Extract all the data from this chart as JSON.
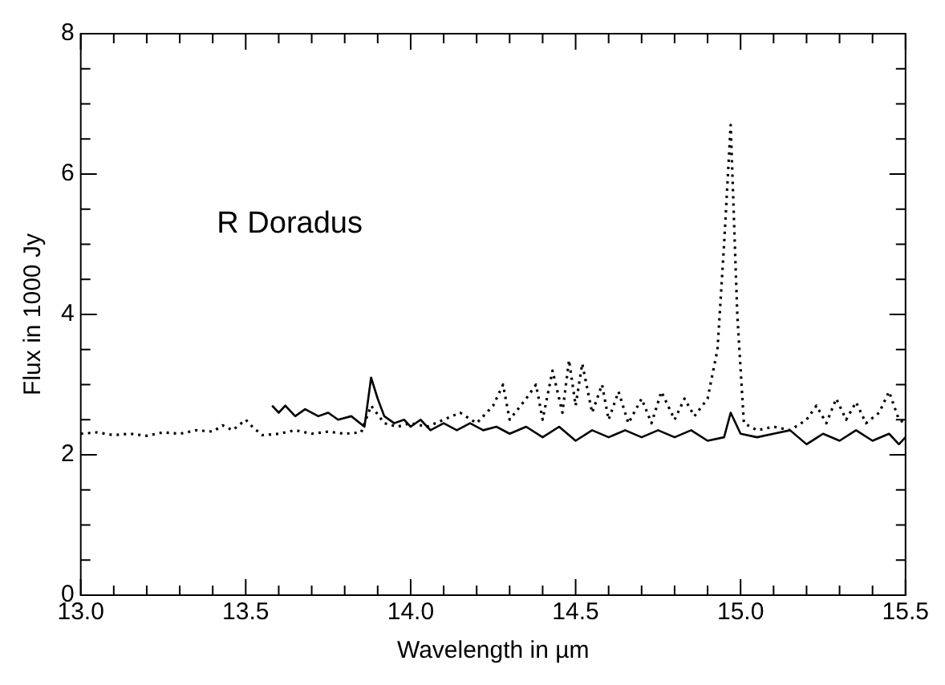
{
  "chart_data": {
    "type": "line",
    "xlabel": "Wavelength in µm",
    "ylabel": "Flux in 1000 Jy",
    "annotations": [
      "R Doradus"
    ],
    "xlim": [
      13.0,
      15.5
    ],
    "ylim": [
      0,
      8
    ],
    "xticks": [
      {
        "value": 13.0,
        "label": "13.0"
      },
      {
        "value": 13.1,
        "label": null
      },
      {
        "value": 13.2,
        "label": null
      },
      {
        "value": 13.3,
        "label": null
      },
      {
        "value": 13.4,
        "label": null
      },
      {
        "value": 13.5,
        "label": "13.5"
      },
      {
        "value": 13.6,
        "label": null
      },
      {
        "value": 13.7,
        "label": null
      },
      {
        "value": 13.8,
        "label": null
      },
      {
        "value": 13.9,
        "label": null
      },
      {
        "value": 14.0,
        "label": "14.0"
      },
      {
        "value": 14.1,
        "label": null
      },
      {
        "value": 14.2,
        "label": null
      },
      {
        "value": 14.3,
        "label": null
      },
      {
        "value": 14.4,
        "label": null
      },
      {
        "value": 14.5,
        "label": "14.5"
      },
      {
        "value": 14.6,
        "label": null
      },
      {
        "value": 14.7,
        "label": null
      },
      {
        "value": 14.8,
        "label": null
      },
      {
        "value": 14.9,
        "label": null
      },
      {
        "value": 15.0,
        "label": "15.0"
      },
      {
        "value": 15.1,
        "label": null
      },
      {
        "value": 15.2,
        "label": null
      },
      {
        "value": 15.3,
        "label": null
      },
      {
        "value": 15.4,
        "label": null
      },
      {
        "value": 15.5,
        "label": "15.5"
      }
    ],
    "yticks": [
      0,
      {
        "value": 0.5,
        "label": null
      },
      {
        "value": 1,
        "label": null
      },
      {
        "value": 1.5,
        "label": null
      },
      2,
      {
        "value": 2.5,
        "label": null
      },
      {
        "value": 3,
        "label": null
      },
      {
        "value": 3.5,
        "label": null
      },
      4,
      {
        "value": 4.5,
        "label": null
      },
      {
        "value": 5,
        "label": null
      },
      {
        "value": 5.5,
        "label": null
      },
      6,
      {
        "value": 6.5,
        "label": null
      },
      {
        "value": 7,
        "label": null
      },
      {
        "value": 7.5,
        "label": null
      },
      8
    ],
    "grid": false,
    "legend": false,
    "marker": "none",
    "series": [
      {
        "color": "#000000",
        "line_style": "solid",
        "x": [
          13.58,
          13.6,
          13.62,
          13.65,
          13.68,
          13.72,
          13.75,
          13.78,
          13.82,
          13.86,
          13.88,
          13.9,
          13.92,
          13.95,
          13.98,
          14.0,
          14.03,
          14.06,
          14.1,
          14.14,
          14.18,
          14.22,
          14.26,
          14.3,
          14.35,
          14.4,
          14.45,
          14.5,
          14.55,
          14.6,
          14.65,
          14.7,
          14.75,
          14.8,
          14.85,
          14.9,
          14.95,
          14.97,
          15.0,
          15.05,
          15.1,
          15.15,
          15.2,
          15.25,
          15.3,
          15.35,
          15.4,
          15.45,
          15.48,
          15.5
        ],
        "values": [
          2.7,
          2.6,
          2.7,
          2.55,
          2.65,
          2.55,
          2.6,
          2.5,
          2.55,
          2.4,
          3.1,
          2.8,
          2.55,
          2.45,
          2.5,
          2.4,
          2.5,
          2.35,
          2.45,
          2.35,
          2.45,
          2.35,
          2.4,
          2.3,
          2.4,
          2.25,
          2.4,
          2.2,
          2.35,
          2.25,
          2.35,
          2.25,
          2.35,
          2.25,
          2.35,
          2.2,
          2.25,
          2.6,
          2.3,
          2.25,
          2.3,
          2.35,
          2.15,
          2.3,
          2.2,
          2.35,
          2.2,
          2.3,
          2.15,
          2.25
        ]
      },
      {
        "color": "#000000",
        "line_style": "dotted",
        "x": [
          13.0,
          13.05,
          13.1,
          13.15,
          13.2,
          13.25,
          13.3,
          13.35,
          13.4,
          13.43,
          13.46,
          13.5,
          13.52,
          13.55,
          13.6,
          13.65,
          13.7,
          13.75,
          13.8,
          13.85,
          13.88,
          13.92,
          13.96,
          14.0,
          14.05,
          14.1,
          14.15,
          14.2,
          14.25,
          14.28,
          14.3,
          14.35,
          14.38,
          14.4,
          14.43,
          14.46,
          14.48,
          14.5,
          14.52,
          14.55,
          14.58,
          14.6,
          14.63,
          14.66,
          14.7,
          14.73,
          14.76,
          14.8,
          14.83,
          14.86,
          14.9,
          14.93,
          14.95,
          14.97,
          14.99,
          15.01,
          15.05,
          15.1,
          15.15,
          15.2,
          15.23,
          15.26,
          15.29,
          15.32,
          15.35,
          15.38,
          15.42,
          15.45,
          15.48,
          15.5
        ],
        "values": [
          2.3,
          2.32,
          2.28,
          2.3,
          2.27,
          2.32,
          2.3,
          2.35,
          2.33,
          2.42,
          2.35,
          2.5,
          2.4,
          2.28,
          2.3,
          2.35,
          2.3,
          2.33,
          2.3,
          2.32,
          2.7,
          2.45,
          2.4,
          2.45,
          2.4,
          2.5,
          2.6,
          2.45,
          2.7,
          3.0,
          2.5,
          2.8,
          3.0,
          2.5,
          3.2,
          2.6,
          3.35,
          2.7,
          3.3,
          2.6,
          3.0,
          2.5,
          2.9,
          2.45,
          2.8,
          2.45,
          2.9,
          2.5,
          2.8,
          2.55,
          2.8,
          3.5,
          5.0,
          6.7,
          4.0,
          2.45,
          2.35,
          2.4,
          2.35,
          2.5,
          2.7,
          2.45,
          2.8,
          2.5,
          2.75,
          2.45,
          2.6,
          2.9,
          2.5,
          2.45
        ]
      }
    ]
  }
}
